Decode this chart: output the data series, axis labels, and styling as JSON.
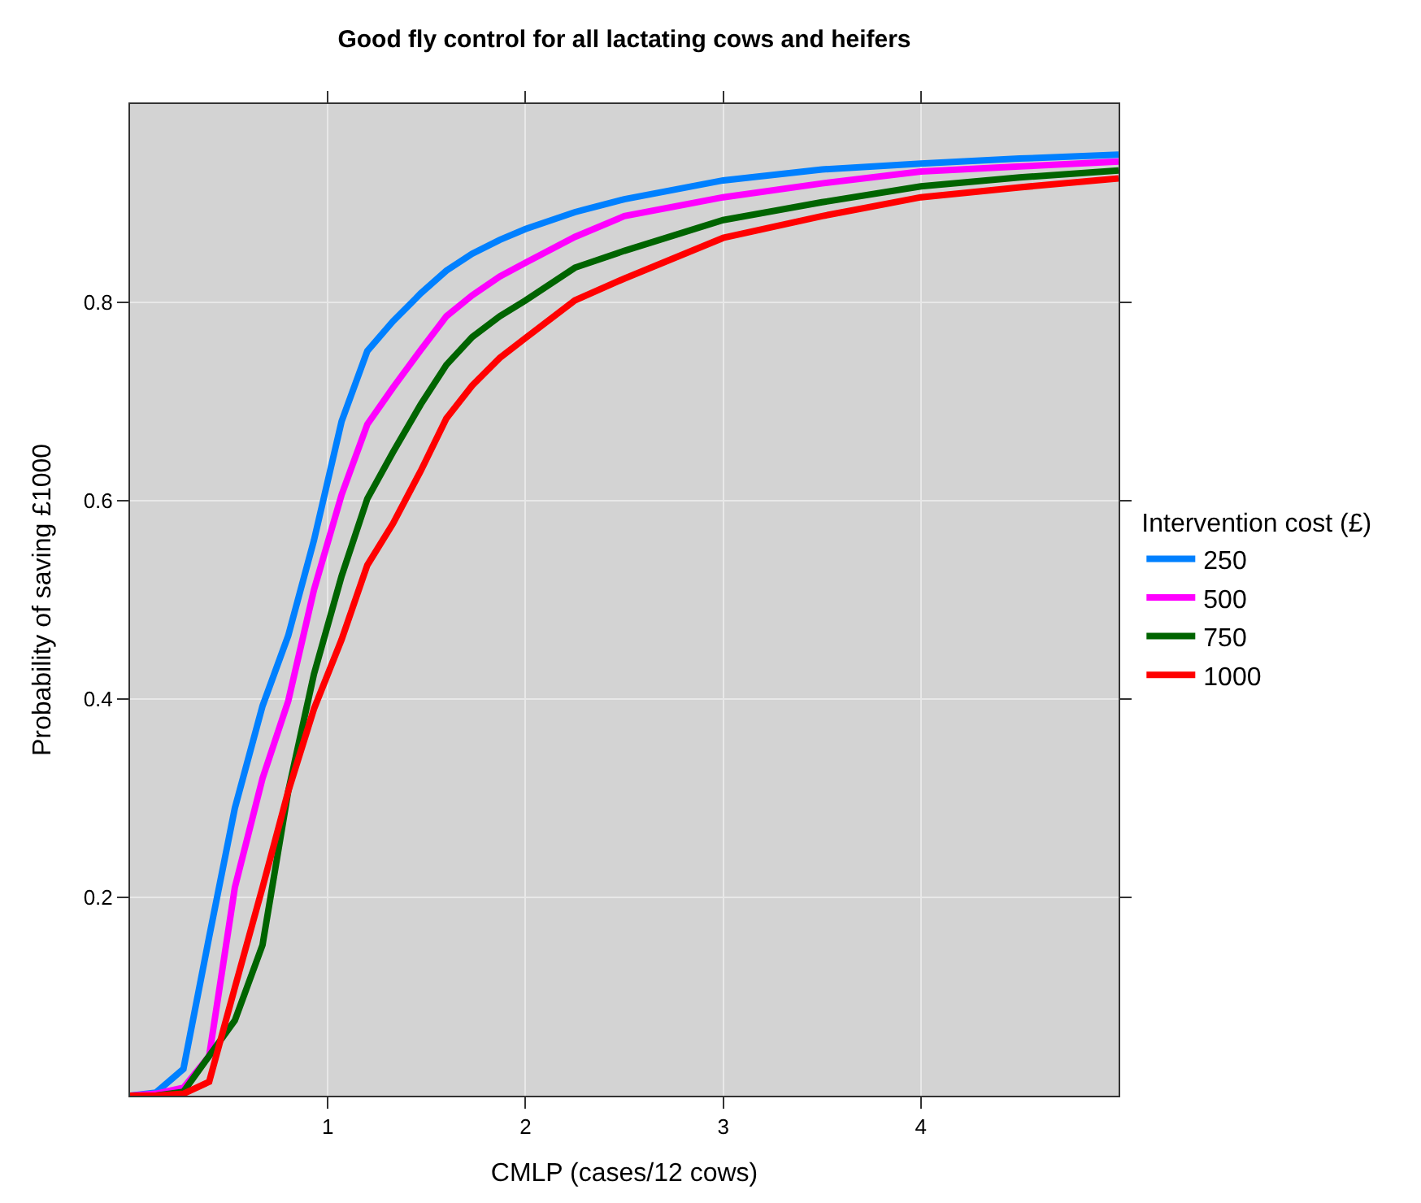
{
  "chart_data": {
    "type": "line",
    "title": "Good fly control for all lactating cows and heifers",
    "xlabel": "CMLP (cases/12 cows)",
    "ylabel": "Probability of saving £1000",
    "legend_title": "Intervention cost (£)",
    "x": [
      0,
      0.13,
      0.27,
      0.4,
      0.53,
      0.67,
      0.8,
      0.93,
      1.07,
      1.2,
      1.33,
      1.47,
      1.6,
      1.73,
      1.87,
      2,
      2.25,
      2.5,
      3,
      3.5,
      4,
      4.5,
      5
    ],
    "series": [
      {
        "name": "250",
        "color": "#0080ff",
        "values": [
          0,
          0.003,
          0.027,
          0.16,
          0.29,
          0.393,
          0.464,
          0.56,
          0.68,
          0.751,
          0.781,
          0.809,
          0.832,
          0.849,
          0.863,
          0.874,
          0.891,
          0.904,
          0.923,
          0.934,
          0.94,
          0.945,
          0.949
        ]
      },
      {
        "name": "500",
        "color": "#ff00ff",
        "values": [
          0,
          0.002,
          0.008,
          0.04,
          0.21,
          0.32,
          0.398,
          0.51,
          0.606,
          0.677,
          0.714,
          0.752,
          0.786,
          0.807,
          0.826,
          0.84,
          0.866,
          0.887,
          0.906,
          0.92,
          0.932,
          0.937,
          0.942
        ]
      },
      {
        "name": "750",
        "color": "#006400",
        "values": [
          0,
          0,
          0.004,
          0.04,
          0.076,
          0.152,
          0.307,
          0.425,
          0.524,
          0.602,
          0.649,
          0.697,
          0.737,
          0.765,
          0.786,
          0.802,
          0.835,
          0.852,
          0.883,
          0.901,
          0.917,
          0.926,
          0.933
        ]
      },
      {
        "name": "1000",
        "color": "#ff0000",
        "values": [
          0,
          0,
          0.002,
          0.014,
          0.109,
          0.21,
          0.307,
          0.39,
          0.46,
          0.535,
          0.577,
          0.63,
          0.683,
          0.716,
          0.744,
          0.764,
          0.802,
          0.824,
          0.865,
          0.887,
          0.906,
          0.916,
          0.925
        ]
      }
    ],
    "xlim": [
      0,
      5
    ],
    "xticks": [
      1,
      2,
      3,
      4
    ],
    "ylim": [
      0,
      1
    ],
    "yticks": [
      0.2,
      0.4,
      0.6,
      0.8
    ],
    "grid": true,
    "legend": "right",
    "line_style": "solid",
    "marker": "none"
  }
}
